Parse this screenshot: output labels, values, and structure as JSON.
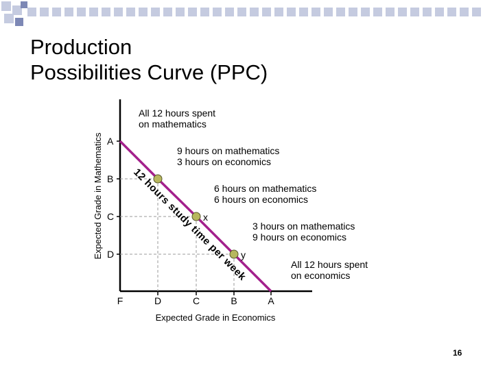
{
  "slide": {
    "title_lines": [
      "Production",
      "Possibilities Curve (PPC)"
    ],
    "page_number": "16"
  },
  "colors": {
    "curve": "#a3208c",
    "point": "#b7b75e",
    "deco_square": "#c5cbe0",
    "deco_accent": "#7d88b5"
  },
  "chart_data": {
    "type": "line",
    "title": "",
    "xlabel": "Expected Grade in Economics",
    "ylabel": "Expected Grade in Mathematics",
    "x_ticks": [
      "F",
      "D",
      "C",
      "B",
      "A"
    ],
    "y_ticks": [
      "D",
      "C",
      "B",
      "A"
    ],
    "curve_label": "12 hours study time per week",
    "series": [
      {
        "points": [
          {
            "x": "F",
            "y": "A"
          },
          {
            "x": "D",
            "y": "B"
          },
          {
            "x": "C",
            "y": "C"
          },
          {
            "x": "B",
            "y": "D"
          },
          {
            "x": "A",
            "y": "F"
          }
        ]
      }
    ],
    "points": [
      {
        "x": "D",
        "y": "B",
        "label": ""
      },
      {
        "x": "C",
        "y": "C",
        "label": "x"
      },
      {
        "x": "B",
        "y": "D",
        "label": "y"
      }
    ],
    "annotations": [
      {
        "lines": [
          "All 12 hours spent",
          "on mathematics"
        ]
      },
      {
        "lines": [
          "9 hours on mathematics",
          "3 hours on economics"
        ]
      },
      {
        "lines": [
          "6 hours on mathematics",
          "6 hours on economics"
        ]
      },
      {
        "lines": [
          "3 hours on mathematics",
          "9 hours on economics"
        ]
      },
      {
        "lines": [
          "All 12 hours spent",
          "on economics"
        ]
      }
    ]
  }
}
